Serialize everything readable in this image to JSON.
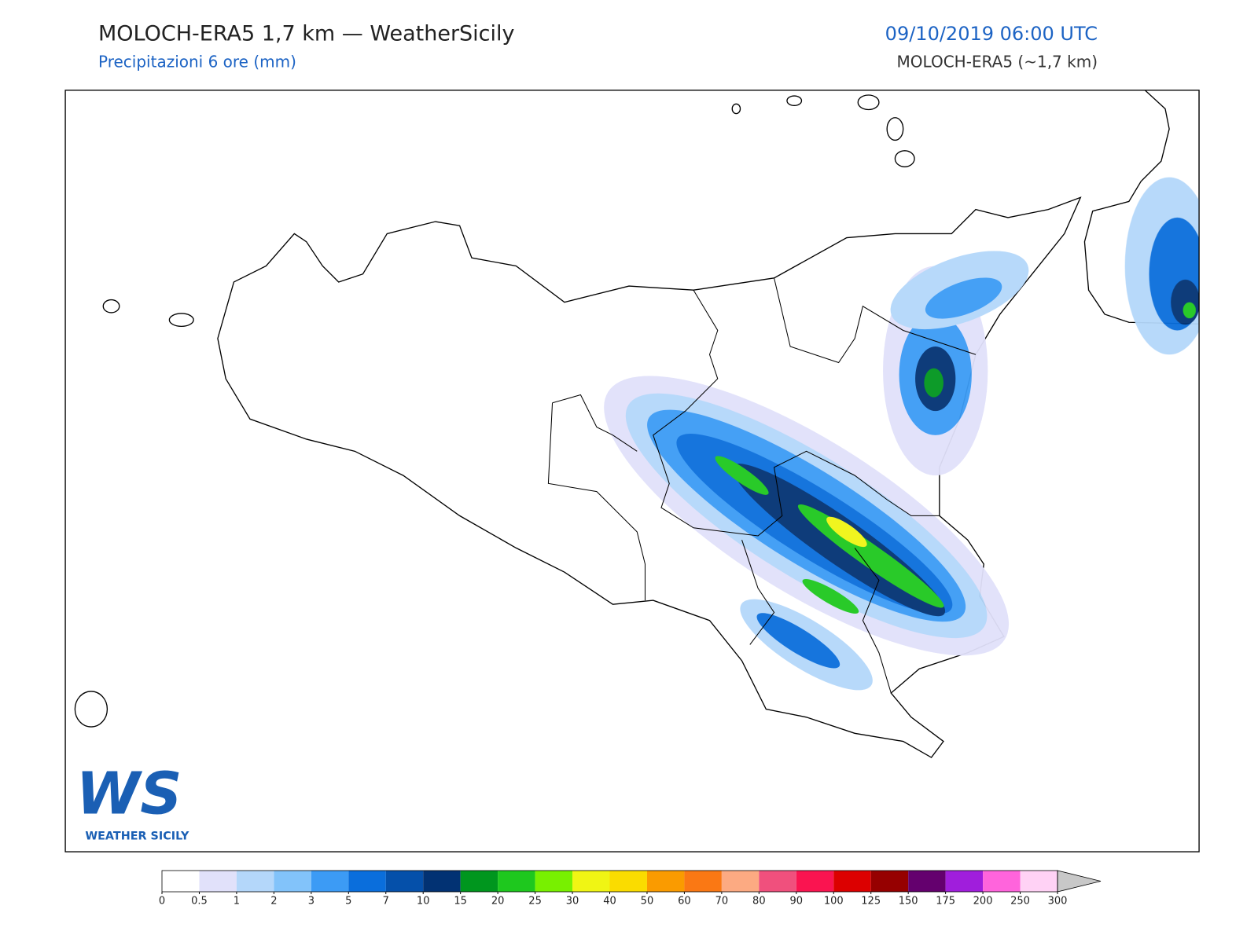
{
  "header": {
    "title": "MOLOCH-ERA5 1,7 km — WeatherSicily",
    "subtitle": "Precipitazioni 6 ore (mm)",
    "datetime": "09/10/2019 06:00 UTC",
    "model": "MOLOCH-ERA5 (~1,7 km)"
  },
  "logo": {
    "mark": "WS",
    "name": "WEATHER SICILY"
  },
  "colorbar": {
    "levels": [
      0,
      0.5,
      1,
      2,
      3,
      5,
      7,
      10,
      15,
      20,
      25,
      30,
      40,
      50,
      60,
      70,
      80,
      90,
      100,
      125,
      150,
      175,
      200,
      250,
      300
    ],
    "colors": [
      "#ffffff",
      "#e1e1fa",
      "#b4d7fa",
      "#82c3fa",
      "#3c9bf5",
      "#0a6edc",
      "#0550aa",
      "#023273",
      "#00961e",
      "#1ec81e",
      "#78f000",
      "#f0f514",
      "#fadc00",
      "#fa9b00",
      "#fa7814",
      "#fcaa82",
      "#f0507d",
      "#fa1450",
      "#dc0000",
      "#960000",
      "#64006e",
      "#a01edc",
      "#ff64dc",
      "#ffd2f5"
    ],
    "extend_color": "#c8c8c8"
  }
}
